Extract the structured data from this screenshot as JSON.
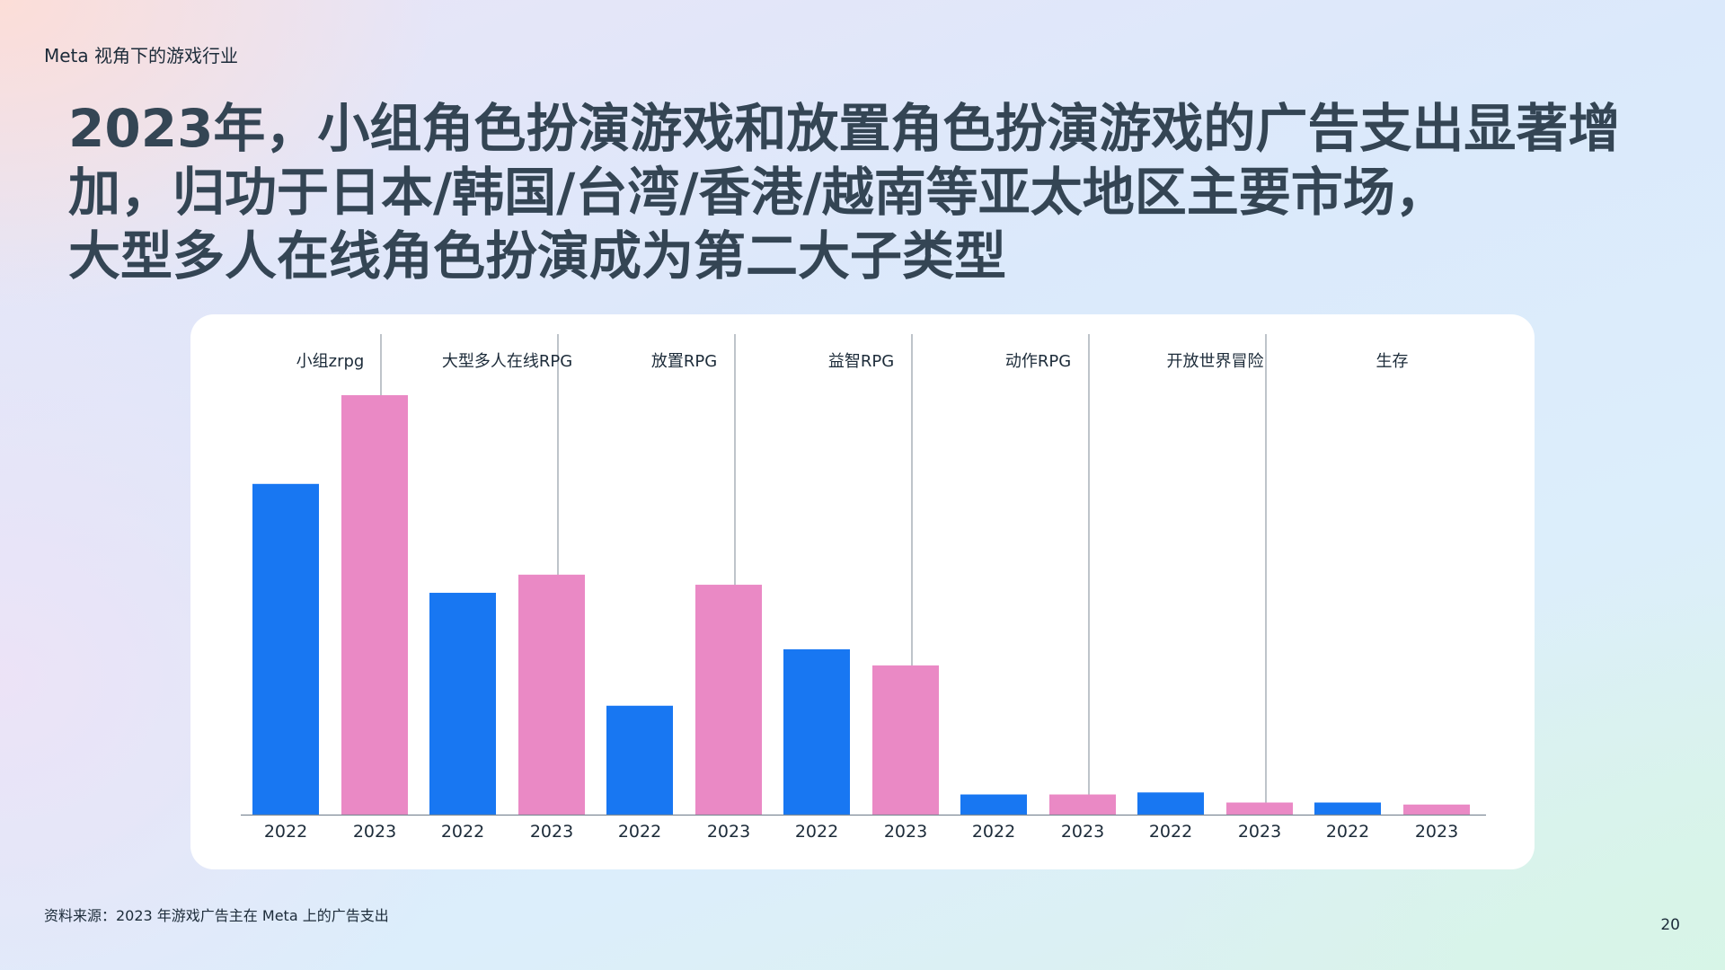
{
  "header": {
    "label": "Meta 视角下的游戏行业"
  },
  "headline": {
    "lines": [
      "2023年，小组角色扮演游戏和放置角色扮演游戏的广告支出显著增",
      "加，归功于日本/韩国/台湾/香港/越南等亚太地区主要市场，",
      "大型多人在线角色扮演成为第二大子类型"
    ]
  },
  "footer": {
    "source": "资料来源：2023 年游戏广告主在 Meta 上的广告支出",
    "page_number": "20"
  },
  "chart_data": {
    "type": "bar",
    "categories": [
      "小组zrpg",
      "大型多人在线RPG",
      "放置RPG",
      "益智RPG",
      "动作RPG",
      "开放世界冒险",
      "生存"
    ],
    "x_sub_labels": [
      "2022",
      "2023"
    ],
    "series": [
      {
        "name": "2022",
        "color": "#1877F2",
        "values": [
          82,
          55,
          27,
          41,
          5,
          5.5,
          3
        ]
      },
      {
        "name": "2023",
        "color": "#EA89C5",
        "values": [
          104,
          59.5,
          57,
          37,
          5,
          3,
          2.5
        ]
      }
    ],
    "ylim": [
      0,
      104
    ],
    "y_axis_shown": false,
    "grid": false,
    "legend": "none",
    "title": "",
    "xlabel": "",
    "ylabel": ""
  }
}
